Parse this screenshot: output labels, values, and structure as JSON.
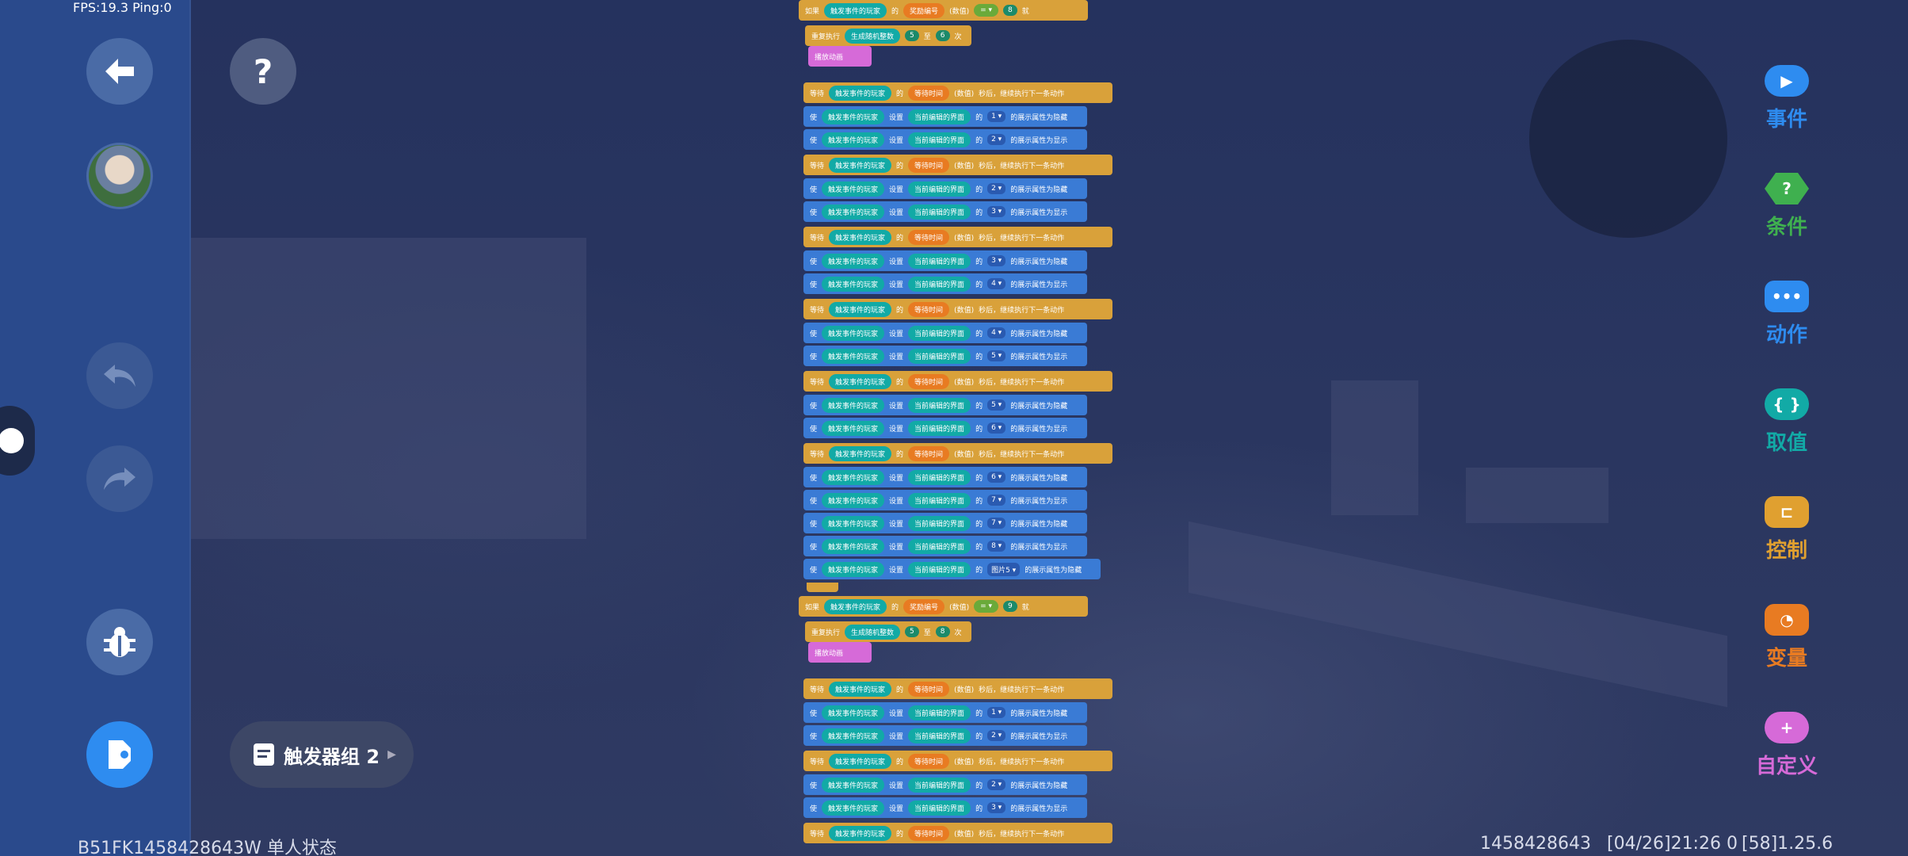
{
  "status": {
    "fps": "FPS:19.3  Ping:0",
    "bottom_left": "B51FK1458428643W 单人状态",
    "bottom_right_id": "1458428643",
    "bottom_right_time": "[04/26]21:26 0",
    "bottom_right_version": "[58]1.25.6"
  },
  "toolbar": {
    "back_icon": "arrow-left-icon",
    "help_label": "?",
    "undo_icon": "undo-icon",
    "redo_icon": "redo-icon",
    "debug_icon": "bug-icon",
    "run_icon": "run-flag-icon"
  },
  "trigger_group": {
    "label": "触发器组 2"
  },
  "palette": [
    {
      "label": "事件",
      "icon": "cloud-play-icon",
      "color": "#2e8cf0",
      "icon_text": "▶"
    },
    {
      "label": "条件",
      "icon": "question-hex-icon",
      "color": "#3fb04f",
      "icon_text": "?"
    },
    {
      "label": "动作",
      "icon": "dots-icon",
      "color": "#2e8cf0",
      "icon_text": "•••"
    },
    {
      "label": "取值",
      "icon": "braces-icon",
      "color": "#12aaa6",
      "icon_text": "{ }"
    },
    {
      "label": "控制",
      "icon": "control-bracket-icon",
      "color": "#e0a030",
      "icon_text": "⊏"
    },
    {
      "label": "变量",
      "icon": "rss-icon",
      "color": "#e87b22",
      "icon_text": "◔"
    },
    {
      "label": "自定义",
      "icon": "puzzle-plus-icon",
      "color": "#d66ad8",
      "icon_text": "+"
    }
  ],
  "blocks": {
    "if": "如果",
    "then": "就",
    "trigger_player": "触发事件的玩家",
    "of": "的",
    "reward_no": "奖励编号",
    "value_type": "(数值)",
    "eq": "= ▾",
    "repeat": "重复执行",
    "random_int": "生成随机整数",
    "to": "至",
    "times": "次",
    "play_anim": "播放动画",
    "wait": "等待",
    "wait_time": "等待时间",
    "seconds_then": "秒后，继续执行下一条动作",
    "make": "使",
    "set": "设置",
    "current_ui": "当前编辑的界面",
    "hide_suffix": "的展示属性为隐藏",
    "show_suffix": "的展示属性为显示",
    "pic5": "图片5 ▾",
    "group1": {
      "reward_value": "8",
      "rand_from": "5",
      "rand_to": "6",
      "pairs": [
        {
          "hide": "1 ▾",
          "show": "2 ▾"
        },
        {
          "hide": "2 ▾",
          "show": "3 ▾"
        },
        {
          "hide": "3 ▾",
          "show": "4 ▾"
        },
        {
          "hide": "4 ▾",
          "show": "5 ▾"
        },
        {
          "hide": "5 ▾",
          "show": "6 ▾"
        }
      ],
      "tail_items": [
        {
          "v": "6 ▾",
          "suffix": "hide"
        },
        {
          "v": "7 ▾",
          "suffix": "show"
        },
        {
          "v": "7 ▾",
          "suffix": "hide"
        },
        {
          "v": "8 ▾",
          "suffix": "show"
        }
      ]
    },
    "group2": {
      "reward_value": "9",
      "rand_from": "5",
      "rand_to": "8",
      "pairs": [
        {
          "hide": "1 ▾",
          "show": "2 ▾"
        },
        {
          "hide": "2 ▾",
          "show": "3 ▾"
        }
      ]
    }
  }
}
